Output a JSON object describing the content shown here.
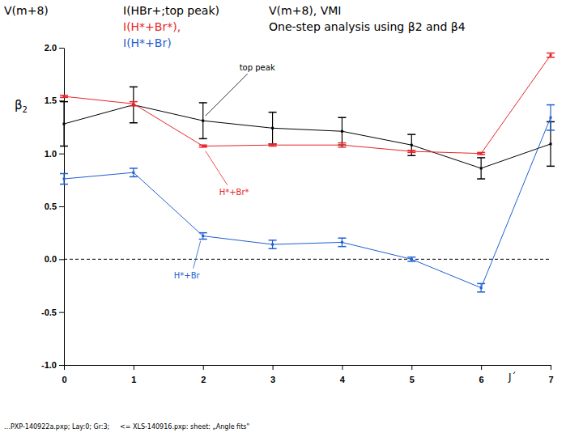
{
  "chart_data": {
    "type": "line",
    "title": "V(m+8)",
    "subtitle": [
      "V(m+8), VMI",
      "One-step analysis using β2 and β4"
    ],
    "header": [
      {
        "text": "I(HBr+;top peak)",
        "color": "#000000"
      },
      {
        "text": "I(H*+Br*),",
        "color": "#e8252a"
      },
      {
        "text": "I(H*+Br)",
        "color": "#1f5fd0"
      }
    ],
    "notes": [
      "…PXP-140922a.pxp; Lay:0; Gr:3;",
      "<= XLS-140916.pxp: sheet: „Angle fits\""
    ],
    "x_label": "J´",
    "y_label": "β2",
    "x": [
      0,
      1,
      2,
      3,
      4,
      5,
      6,
      7
    ],
    "xlim": [
      0,
      7
    ],
    "xticks": [
      0,
      1,
      2,
      3,
      4,
      5,
      6,
      7
    ],
    "ylim": [
      -1,
      2
    ],
    "yticks": [
      {
        "value": -1,
        "label": "-1.0"
      },
      {
        "value": -0.5,
        "label": "-0.5"
      },
      {
        "value": 0,
        "label": "0.0"
      },
      {
        "value": 0.5,
        "label": "0.5"
      },
      {
        "value": 1,
        "label": "1.0"
      },
      {
        "value": 1.5,
        "label": "1.5"
      },
      {
        "value": 2,
        "label": "2.0"
      }
    ],
    "hline": 0,
    "marker": "square",
    "series": [
      {
        "name": "top peak",
        "color": "#000000",
        "values": [
          1.28,
          1.46,
          1.31,
          1.24,
          1.21,
          1.08,
          0.86,
          1.09
        ],
        "errors": [
          0.21,
          0.17,
          0.17,
          0.15,
          0.13,
          0.1,
          0.1,
          0.21
        ]
      },
      {
        "name": "H*+Br*",
        "color": "#e8252a",
        "values": [
          1.54,
          1.47,
          1.07,
          1.08,
          1.08,
          1.02,
          1.0,
          1.93
        ],
        "errors": [
          0.01,
          0.02,
          0.01,
          0.01,
          0.02,
          0.01,
          0.01,
          0.02
        ]
      },
      {
        "name": "H*+Br",
        "color": "#1f5fd0",
        "values": [
          0.76,
          0.82,
          0.22,
          0.14,
          0.16,
          0.0,
          -0.27,
          1.34
        ],
        "errors": [
          0.05,
          0.04,
          0.03,
          0.04,
          0.04,
          0.02,
          0.04,
          0.12
        ]
      }
    ]
  }
}
